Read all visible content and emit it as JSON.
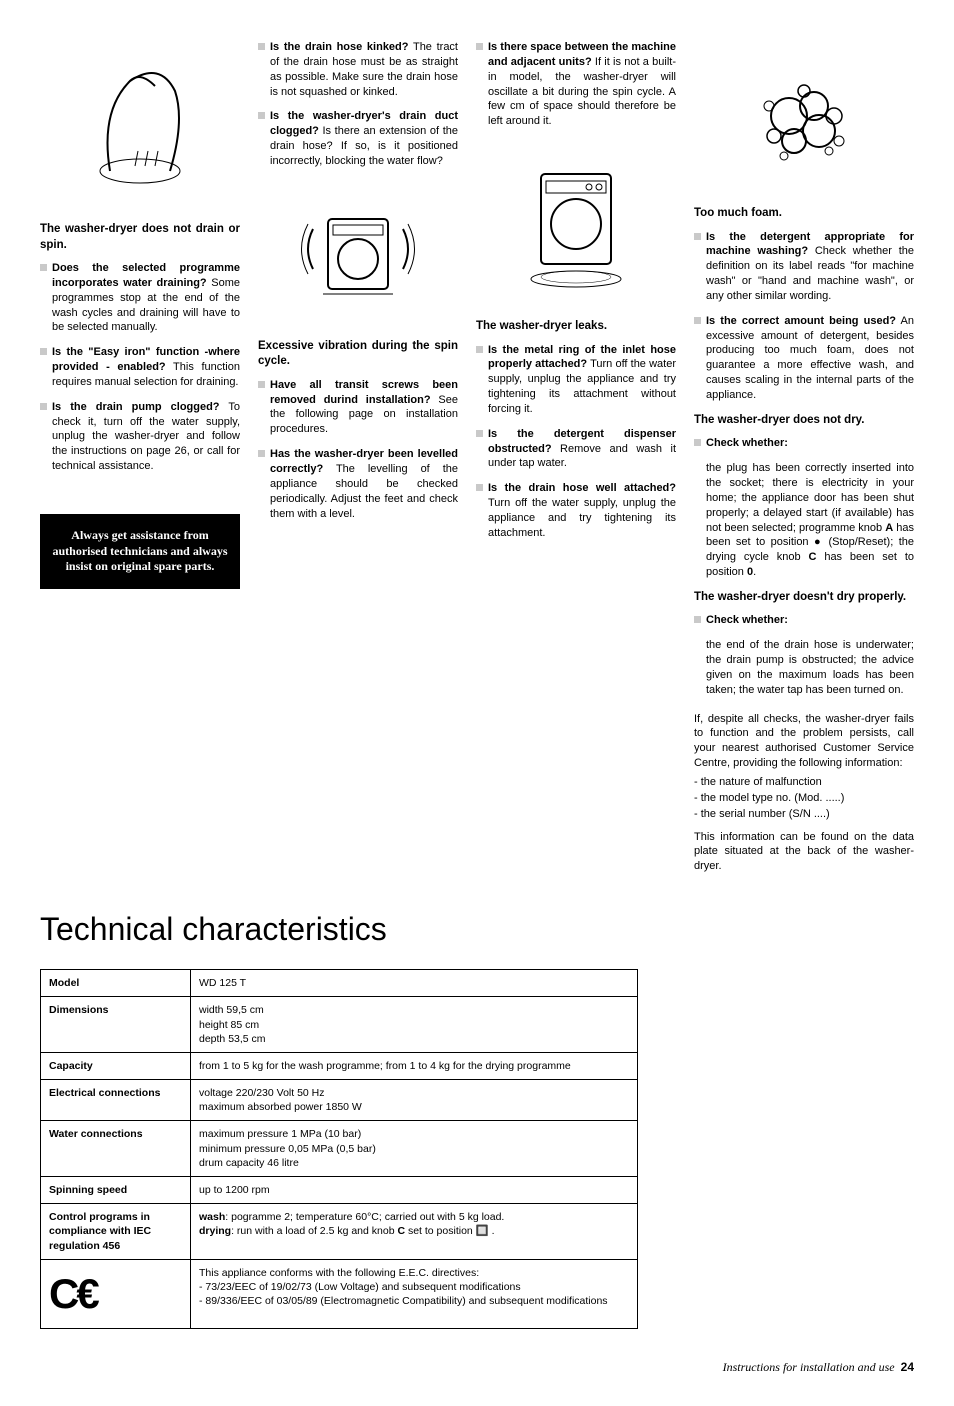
{
  "col1": {
    "heading": "The washer-dryer does not drain or spin.",
    "bullets": [
      {
        "bold": "Does the selected programme incorporates water draining?",
        "rest": " Some programmes stop at the end of the wash cycles and draining will have to be selected manually."
      },
      {
        "bold": "Is the \"Easy iron\" function -where provided - enabled?",
        "rest": " This function requires manual selection for draining."
      },
      {
        "bold": "Is the drain pump clogged?",
        "rest": " To check it, turn off the water supply, unplug the washer-dryer and follow the instructions on page 26, or call for technical assistance."
      }
    ],
    "callout": "Always get assistance from authorised technicians and always insist on original spare parts."
  },
  "col2": {
    "bullets_top": [
      {
        "bold": "Is the drain hose kinked?",
        "rest": " The tract of the drain hose must be as straight as possible. Make sure the drain hose is not squashed or kinked."
      },
      {
        "bold": "Is the washer-dryer's drain duct clogged?",
        "rest": " Is there an extension of the drain hose? If so, is it positioned incorrectly, blocking the water flow?"
      }
    ],
    "heading": "Excessive vibration during the spin cycle.",
    "bullets_bottom": [
      {
        "bold": "Have all transit screws been removed durind installation?",
        "rest": " See the following page on installation procedures."
      },
      {
        "bold": "Has the washer-dryer been levelled correctly?",
        "rest": " The levelling of the appliance should be checked periodically. Adjust the feet and check them with a level."
      }
    ]
  },
  "col3": {
    "bullets_top": [
      {
        "bold": "Is there space between the machine and adjacent units?",
        "rest": " If it is not a built-in model, the washer-dryer will oscillate a bit during the spin cycle. A few cm of space should therefore be left around it."
      }
    ],
    "heading": "The washer-dryer leaks.",
    "bullets_bottom": [
      {
        "bold": "Is the metal ring of the inlet hose properly attached?",
        "rest": " Turn off  the water supply, unplug the appliance and try tightening its attachment without forcing it."
      },
      {
        "bold": "Is the detergent dispenser obstructed?",
        "rest": " Remove and wash it under tap water."
      },
      {
        "bold": "Is the drain hose well attached?",
        "rest": " Turn off the water supply, unplug the appliance and try tightening its attachment."
      }
    ]
  },
  "col4": {
    "heading1": "Too much foam.",
    "bullets1": [
      {
        "bold": "Is the detergent appropriate for machine washing?",
        "rest": " Check whether the definition on its label reads \"for machine wash\" or \"hand and machine wash\", or any other similar wording."
      },
      {
        "bold": "Is the correct amount being used?",
        "rest": " An excessive amount of detergent, besides producing too much foam, does not guarantee a more effective wash, and causes scaling in the internal parts of the appliance."
      }
    ],
    "heading2": "The washer-dryer does not dry.",
    "bullets2": [
      {
        "bold": "Check whether:",
        "rest": ""
      }
    ],
    "check2_text_a": "the plug has been correctly inserted into the socket; there is electricity in your home; the appliance door has been shut properly; a delayed start (if available) has not been selected; programme knob ",
    "check2_A": "A",
    "check2_text_b": " has been set to position ● (Stop/Reset); the drying cycle knob ",
    "check2_C": "C",
    "check2_text_c": " has been set to position ",
    "check2_0": "0",
    "check2_text_d": ".",
    "heading3": "The washer-dryer doesn't dry properly.",
    "bullets3": [
      {
        "bold": "Check whether:",
        "rest": ""
      }
    ],
    "check3_text": "the end of the drain hose is underwater; the drain pump is obstructed; the advice given on the maximum loads has been taken; the water tap has been turned on.",
    "service_text": "If, despite all checks, the washer-dryer fails to function and the problem persists, call your nearest authorised Customer Service Centre, providing the following information:",
    "service_list": [
      "- the nature of malfunction",
      "- the model type no. (Mod. .....)",
      "- the serial number (S/N ....)"
    ],
    "service_footer": "This information can be found on the data plate situated at the back of the washer-dryer."
  },
  "tech": {
    "title": "Technical characteristics",
    "rows": [
      {
        "label": "Model",
        "value": "WD 125 T"
      },
      {
        "label": "Dimensions",
        "value": "width 59,5 cm\nheight 85 cm\ndepth 53,5 cm"
      },
      {
        "label": "Capacity",
        "value": "from 1 to 5 kg for the wash programme; from 1 to 4 kg for the drying programme"
      },
      {
        "label": "Electrical connections",
        "value": "voltage 220/230 Volt 50 Hz\nmaximum absorbed power 1850 W"
      },
      {
        "label": "Water connections",
        "value": "maximum pressure 1 MPa (10 bar)\nminimum pressure 0,05 MPa (0,5 bar)\ndrum capacity 46 litre"
      },
      {
        "label": "Spinning speed",
        "value": "up to 1200 rpm"
      },
      {
        "label": "Control programs in compliance with IEC regulation 456",
        "value_html": "<b>wash</b>: pogramme 2; temperature 60°C; carried out with 5 kg load.<br><b>drying</b>: run with a load of 2.5 kg and knob <b>C</b> set to position 🔲 ."
      }
    ],
    "ce_text": "This appliance conforms with the following E.E.C. directives:\n- 73/23/EEC of 19/02/73 (Low Voltage) and subsequent modifications\n- 89/336/EEC of 03/05/89 (Electromagnetic Compatibility) and subsequent modifications"
  },
  "footer": {
    "text": "Instructions for installation and use",
    "page": "24"
  }
}
